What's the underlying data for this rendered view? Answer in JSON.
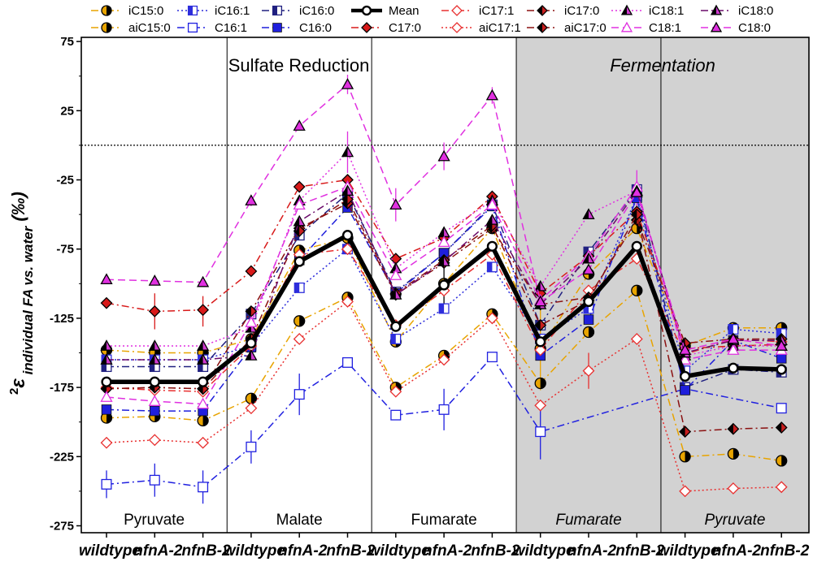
{
  "chart_data": {
    "type": "line",
    "ylabel_superscript": "2",
    "ylabel_symbol": "ε",
    "ylabel_subscript": "individual FA vs. water",
    "ylabel_unit": "(‰)",
    "ylim": [
      -280,
      78
    ],
    "yticks": [
      75,
      25,
      -25,
      -75,
      -125,
      -175,
      -225,
      -275
    ],
    "y_reference_line": 0,
    "x_labels": [
      "wildtype",
      "nfnA-2",
      "nfnB-2",
      "wildtype",
      "nfnA-2",
      "nfnB-2",
      "wildtype",
      "nfnA-2",
      "nfnB-2",
      "wildtype",
      "nfnA-2",
      "nfnB-2",
      "wildtype",
      "nfnA-2",
      "nfnB-2"
    ],
    "metabolism_labels": [
      {
        "text": "Sulfate Reduction",
        "italic": false,
        "from": 0,
        "to": 8
      },
      {
        "text": "Fermentation",
        "italic": true,
        "from": 9,
        "to": 14
      }
    ],
    "groups": [
      {
        "label": "Pyruvate",
        "italic": false,
        "from": 0,
        "to": 2
      },
      {
        "label": "Malate",
        "italic": false,
        "from": 3,
        "to": 5
      },
      {
        "label": "Fumarate",
        "italic": false,
        "from": 6,
        "to": 8
      },
      {
        "label": "Fumarate",
        "italic": true,
        "from": 9,
        "to": 11
      },
      {
        "label": "Pyruvate",
        "italic": true,
        "from": 12,
        "to": 14
      }
    ],
    "shaded_from_index": 9,
    "series": [
      {
        "name": "iC15:0",
        "color": "#e8a400",
        "dash": "dashdot",
        "marker": "circle-half",
        "values": [
          -148,
          -150,
          -150,
          -140,
          -76,
          -67,
          -142,
          -100,
          -60,
          -147,
          -93,
          -60,
          -145,
          -132,
          -132
        ]
      },
      {
        "name": "aiC15:0",
        "color": "#e8a400",
        "dash": "dashdot",
        "marker": "circle-half",
        "values": [
          -197,
          -196,
          -199,
          -183,
          -127,
          -110,
          -175,
          -152,
          -122,
          -172,
          -135,
          -105,
          -225,
          -223,
          -228
        ]
      },
      {
        "name": "iC16:1",
        "color": "#2d2ddc",
        "dash": "dot",
        "marker": "square-half",
        "values": [
          -155,
          -155,
          -155,
          -145,
          -103,
          -75,
          -140,
          -118,
          -88,
          -140,
          -118,
          -37,
          -163,
          -133,
          -136
        ]
      },
      {
        "name": "C16:1",
        "color": "#2020e0",
        "dash": "dashdot",
        "marker": "square-open",
        "values": [
          -245,
          -242,
          -247,
          -218,
          -180,
          -157,
          -195,
          -191,
          -153,
          -207,
          null,
          null,
          -176,
          null,
          -190
        ]
      },
      {
        "name": "iC16:0",
        "color": "#202080",
        "dash": "dashdot",
        "marker": "square-half",
        "values": [
          -160,
          -160,
          -160,
          -122,
          -65,
          -35,
          -106,
          -78,
          -43,
          -130,
          -77,
          -32,
          -175,
          -162,
          -164
        ]
      },
      {
        "name": "C16:0",
        "color": "#1f1fdc",
        "dash": "dashdot",
        "marker": "square",
        "values": [
          -191,
          -192,
          -192,
          -146,
          -83,
          -45,
          -107,
          -78,
          -44,
          -152,
          -126,
          -38,
          -177,
          -141,
          -154
        ]
      },
      {
        "name": "Mean",
        "color": "#000000",
        "dash": "solid",
        "marker": "circle-open",
        "values": [
          -171,
          -171,
          -171,
          -143,
          -84,
          -65,
          -131,
          -101,
          -73,
          -142,
          -113,
          -73,
          -167,
          -161,
          -162
        ]
      },
      {
        "name": "C17:0",
        "color": "#d81a1a",
        "dash": "dashdot",
        "marker": "diamond",
        "values": [
          -114,
          -120,
          -119,
          -91,
          -30,
          -25,
          -82,
          -67,
          -37,
          -107,
          -80,
          -48,
          -147,
          -145,
          -144
        ]
      },
      {
        "name": "iC17:1",
        "color": "#e83030",
        "dash": "dashdot",
        "marker": "diamond-open",
        "values": [
          -175,
          -177,
          -178,
          -145,
          -79,
          -75,
          -130,
          -105,
          -79,
          -148,
          -105,
          -82,
          -151,
          -140,
          -142
        ]
      },
      {
        "name": "aiC17:1",
        "color": "#e83030",
        "dash": "dot",
        "marker": "diamond-open",
        "values": [
          -215,
          -213,
          -215,
          -190,
          -140,
          -113,
          -178,
          -155,
          -125,
          -188,
          -163,
          -140,
          -250,
          -248,
          -247
        ]
      },
      {
        "name": "iC17:0",
        "color": "#8b1111",
        "dash": "dashdot",
        "marker": "diamond-half",
        "values": [
          -176,
          -175,
          -176,
          -120,
          -60,
          -42,
          -108,
          -85,
          -60,
          -115,
          -110,
          -54,
          -143,
          -140,
          -140
        ]
      },
      {
        "name": "aiC17:0",
        "color": "#8b1111",
        "dash": "dashdot",
        "marker": "diamond-half",
        "values": [
          -176,
          -175,
          -176,
          -140,
          -62,
          -39,
          -107,
          -83,
          -58,
          -130,
          -112,
          -50,
          -207,
          -205,
          -204
        ]
      },
      {
        "name": "iC18:1",
        "color": "#e030e0",
        "dash": "dot",
        "marker": "triangle-half",
        "values": [
          -145,
          -145,
          -145,
          -132,
          -40,
          -5,
          -89,
          -63,
          -40,
          -102,
          -50,
          -33,
          -152,
          -145,
          -145
        ]
      },
      {
        "name": "C18:1",
        "color": "#e030e0",
        "dash": "dash",
        "marker": "triangle-open",
        "values": [
          -182,
          -185,
          -187,
          -128,
          -43,
          -30,
          -94,
          -70,
          -43,
          -112,
          -80,
          -30,
          -155,
          -148,
          -148
        ]
      },
      {
        "name": "iC18:0",
        "color": "#6a0a6a",
        "dash": "dashdot",
        "marker": "triangle-half",
        "values": [
          -155,
          -155,
          -155,
          -152,
          -55,
          -33,
          -108,
          -84,
          -54,
          -115,
          -82,
          -33,
          -150,
          -141,
          -141
        ]
      },
      {
        "name": "C18:0",
        "color": "#e030e0",
        "dash": "dash",
        "marker": "triangle",
        "values": [
          -97,
          -98,
          -99,
          -40,
          14,
          44,
          -43,
          -8,
          36,
          -113,
          -90,
          -34,
          -148,
          -140,
          -145
        ]
      }
    ],
    "error_bars": [
      {
        "series": "C17:0",
        "index": 1,
        "plus": 13,
        "minus": 13
      },
      {
        "series": "C17:0",
        "index": 2,
        "plus": 10,
        "minus": 12
      },
      {
        "series": "C16:1",
        "index": 0,
        "plus": 10,
        "minus": 10
      },
      {
        "series": "C16:1",
        "index": 1,
        "plus": 12,
        "minus": 12
      },
      {
        "series": "C16:1",
        "index": 2,
        "plus": 12,
        "minus": 12
      },
      {
        "series": "C16:1",
        "index": 3,
        "plus": 12,
        "minus": 12
      },
      {
        "series": "C16:1",
        "index": 4,
        "plus": 15,
        "minus": 15
      },
      {
        "series": "C16:1",
        "index": 7,
        "plus": 15,
        "minus": 15
      },
      {
        "series": "C16:1",
        "index": 9,
        "plus": 20,
        "minus": 20
      },
      {
        "series": "C18:0",
        "index": 3,
        "plus": 4,
        "minus": 4
      },
      {
        "series": "C18:0",
        "index": 5,
        "plus": 7,
        "minus": 7
      },
      {
        "series": "C18:0",
        "index": 6,
        "plus": 12,
        "minus": 12
      },
      {
        "series": "C18:0",
        "index": 7,
        "plus": 10,
        "minus": 10
      },
      {
        "series": "C18:0",
        "index": 8,
        "plus": 6,
        "minus": 6
      },
      {
        "series": "iC18:1",
        "index": 5,
        "plus": 15,
        "minus": 15
      },
      {
        "series": "iC18:1",
        "index": 11,
        "plus": 15,
        "minus": 15
      },
      {
        "series": "Mean",
        "index": 7,
        "plus": 25,
        "minus": 20
      },
      {
        "series": "aiC17:1",
        "index": 10,
        "plus": 13,
        "minus": 13
      },
      {
        "series": "iC15:0",
        "index": 9,
        "plus": 30,
        "minus": 30
      }
    ]
  }
}
